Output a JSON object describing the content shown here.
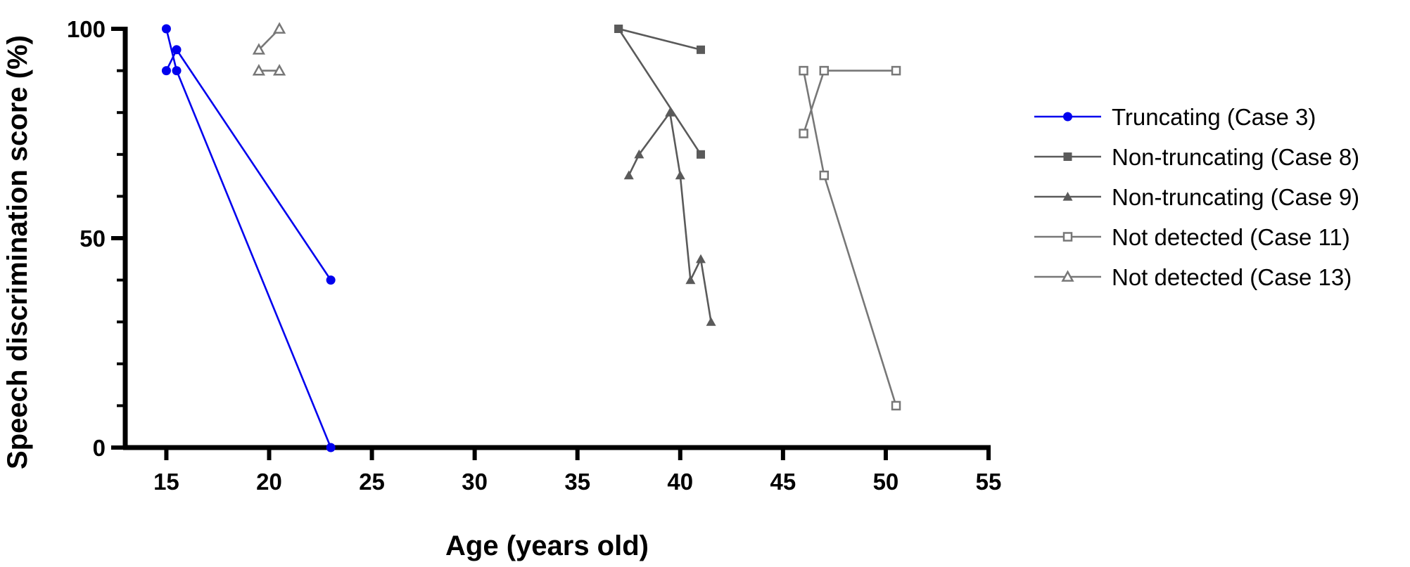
{
  "chart_data": {
    "type": "line",
    "xlabel": "Age (years old)",
    "ylabel": "Speech discrimination score (%)",
    "xlim": [
      13,
      55
    ],
    "ylim": [
      0,
      100
    ],
    "xticks": [
      15,
      20,
      25,
      30,
      35,
      40,
      45,
      50,
      55
    ],
    "xtick_labels": [
      "15",
      "20",
      "25",
      "30",
      "35",
      "40",
      "45",
      "50",
      "55"
    ],
    "yticks": [
      0,
      50,
      100
    ],
    "ytick_labels": [
      "0",
      "50",
      "100"
    ],
    "y_minor_step": 10,
    "legend_position": "right",
    "grid": false,
    "series": [
      {
        "name": "Truncating (Case 3)",
        "color": "#0000ee",
        "marker": "circle-filled",
        "lines": [
          [
            [
              15,
              100
            ],
            [
              15.5,
              90
            ],
            [
              23,
              0
            ]
          ],
          [
            [
              15,
              90
            ],
            [
              15.5,
              95
            ],
            [
              23,
              40
            ]
          ]
        ]
      },
      {
        "name": "Non-truncating (Case 8)",
        "color": "#5a5a5a",
        "marker": "square-filled",
        "lines": [
          [
            [
              37,
              100
            ],
            [
              41,
              95
            ]
          ],
          [
            [
              37,
              100
            ],
            [
              41,
              70
            ]
          ]
        ]
      },
      {
        "name": "Non-truncating (Case 9)",
        "color": "#5a5a5a",
        "marker": "triangle-filled",
        "lines": [
          [
            [
              37.5,
              65
            ],
            [
              38,
              70
            ],
            [
              39.5,
              80
            ],
            [
              40,
              65
            ],
            [
              40.5,
              40
            ],
            [
              41,
              45
            ],
            [
              41.5,
              30
            ]
          ]
        ]
      },
      {
        "name": "Not detected (Case 11)",
        "color": "#777777",
        "marker": "square-open",
        "lines": [
          [
            [
              46,
              75
            ],
            [
              47,
              90
            ],
            [
              50.5,
              90
            ]
          ],
          [
            [
              46,
              90
            ],
            [
              47,
              65
            ],
            [
              50.5,
              10
            ]
          ]
        ]
      },
      {
        "name": "Not detected (Case 13)",
        "color": "#777777",
        "marker": "triangle-open",
        "lines": [
          [
            [
              19.5,
              95
            ],
            [
              20.5,
              100
            ]
          ],
          [
            [
              19.5,
              90
            ],
            [
              20.5,
              90
            ]
          ]
        ]
      }
    ]
  }
}
